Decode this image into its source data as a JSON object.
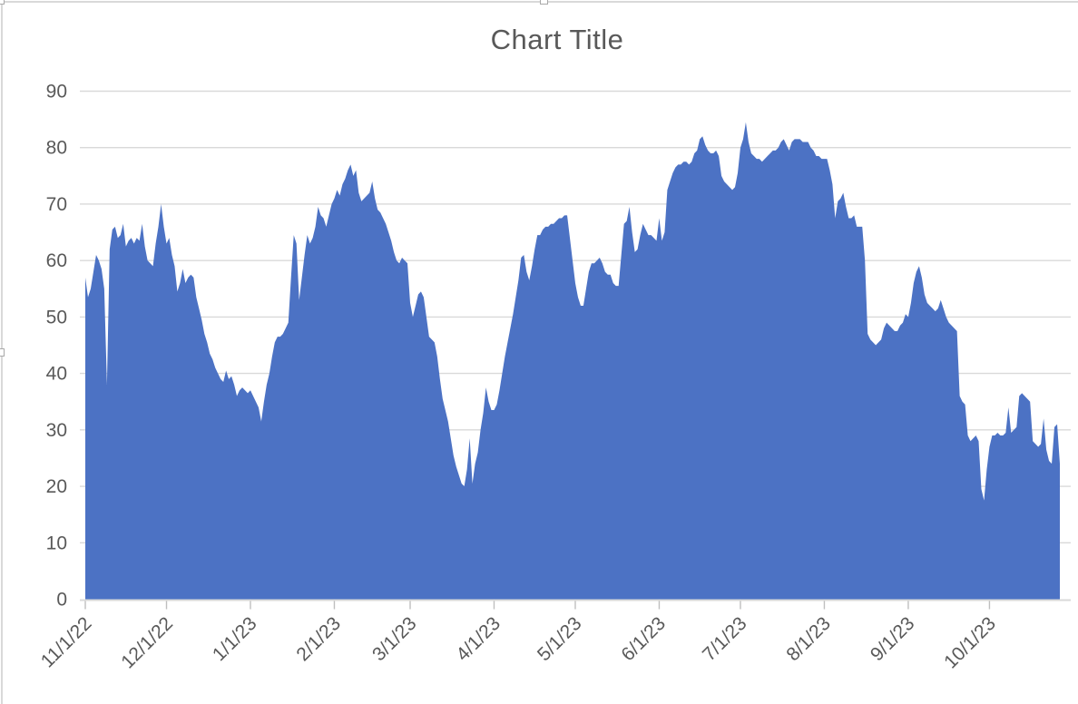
{
  "chart": {
    "title": "Chart Title"
  },
  "chart_data": {
    "type": "area",
    "title": "Chart Title",
    "xlabel": "",
    "ylabel": "",
    "x_start": "11/1/2022",
    "x_frequency": "daily",
    "x_tick_labels": [
      "11/1/22",
      "12/1/22",
      "1/1/23",
      "2/1/23",
      "3/1/23",
      "4/1/23",
      "5/1/23",
      "6/1/23",
      "7/1/23",
      "8/1/23",
      "9/1/23",
      "10/1/23"
    ],
    "x_tick_day_offsets": [
      0,
      30,
      61,
      92,
      120,
      151,
      181,
      212,
      242,
      273,
      304,
      334
    ],
    "y_tick_labels": [
      "0",
      "10",
      "20",
      "30",
      "40",
      "50",
      "60",
      "70",
      "80",
      "90"
    ],
    "ylim": [
      0,
      90
    ],
    "grid": "horizontal",
    "legend": "none",
    "values": [
      57,
      53.5,
      55,
      58,
      61,
      60,
      58.5,
      55,
      38,
      62,
      65.5,
      66,
      64,
      64.5,
      66.5,
      62.5,
      63.5,
      64,
      63,
      64,
      63.5,
      66.5,
      62.5,
      60,
      59.5,
      59,
      63,
      66,
      70,
      66,
      63,
      64,
      61,
      59,
      54.5,
      56,
      58.5,
      56,
      57,
      57.5,
      57,
      53.5,
      51.5,
      49.5,
      47,
      45.5,
      43.5,
      42.5,
      41,
      40,
      39,
      38.5,
      40.5,
      39,
      39.5,
      38,
      36,
      37,
      37.5,
      37,
      36.5,
      37,
      36,
      35,
      34,
      31.5,
      35,
      38,
      40,
      43,
      45.5,
      46.5,
      46.5,
      47,
      48,
      49,
      57,
      64.5,
      63,
      53,
      57,
      61,
      64.5,
      63,
      64,
      66,
      69.5,
      68,
      67.5,
      66,
      68,
      70,
      71,
      72.5,
      71.5,
      73.5,
      74.5,
      76,
      77,
      75,
      76,
      72,
      70.5,
      71,
      71.5,
      72,
      74,
      71,
      69,
      68.5,
      67.5,
      66.5,
      65,
      63.5,
      61.5,
      60,
      59.5,
      60.5,
      60,
      59.5,
      52.5,
      50,
      52,
      54,
      54.5,
      53.5,
      50,
      46.5,
      46,
      45.5,
      43,
      39,
      35.5,
      33.5,
      31.5,
      28.5,
      25.5,
      23.5,
      22,
      20.5,
      20,
      23,
      28.5,
      20.5,
      24,
      26,
      30,
      33,
      37.5,
      35,
      33.5,
      33.5,
      34.5,
      37,
      40,
      43,
      45.5,
      48,
      50.5,
      53.5,
      56.5,
      60.5,
      61,
      58,
      56.5,
      59,
      62,
      64.5,
      64.5,
      65.5,
      66,
      66,
      66.5,
      66.5,
      67,
      67.5,
      67.5,
      68,
      68,
      64,
      60,
      56,
      53.5,
      52,
      52,
      55,
      58,
      59.5,
      59.5,
      60,
      60.5,
      59.5,
      58,
      57.5,
      57.5,
      56,
      55.5,
      55.5,
      61,
      66.5,
      67,
      69.5,
      65,
      61.5,
      62,
      64.5,
      66.5,
      65.5,
      64.5,
      64.5,
      64,
      63.5,
      67.5,
      63.5,
      65,
      72.5,
      74,
      75.5,
      76.5,
      77,
      77,
      77.5,
      77.5,
      77,
      77.5,
      79,
      79.5,
      81.5,
      82,
      80.5,
      79.5,
      79,
      79,
      79.5,
      78.5,
      75,
      74,
      73.5,
      73,
      72.5,
      73,
      75.5,
      80,
      81.5,
      84.5,
      81,
      79,
      78.5,
      78,
      78,
      77.5,
      78,
      78.5,
      79,
      79.5,
      79.5,
      80,
      81,
      81.5,
      80.5,
      79.5,
      81,
      81.5,
      81.5,
      81.5,
      81,
      81,
      81,
      80,
      79.5,
      78.5,
      78.5,
      78,
      78,
      78,
      76,
      73.5,
      67.5,
      70.5,
      71,
      72,
      69.5,
      67.5,
      67.5,
      68,
      66,
      66,
      66,
      60,
      47,
      46,
      45.5,
      45,
      45.5,
      46,
      48,
      49,
      48.5,
      48,
      47.5,
      47.5,
      48.5,
      49,
      50.5,
      50,
      52.5,
      56,
      58,
      59,
      57,
      54,
      52.5,
      52,
      51.5,
      51,
      51.5,
      53,
      51.5,
      50,
      49,
      48.5,
      48,
      47.5,
      36,
      35,
      34.5,
      29,
      28,
      28.5,
      29,
      28,
      19.5,
      17.5,
      23,
      27,
      29,
      29,
      29.5,
      29,
      29,
      29.5,
      34,
      29.5,
      30,
      30.5,
      36,
      36.5,
      36,
      35.5,
      35,
      28,
      27.5,
      27,
      27.5,
      32,
      26.5,
      24.5,
      24,
      30.5,
      31,
      24
    ],
    "colors": {
      "area_fill": "#4C72C4",
      "gridline": "#D9D9D9",
      "axis_line": "#D9D9D9",
      "tick_mark": "#BFBFBF",
      "text": "#595959"
    }
  }
}
